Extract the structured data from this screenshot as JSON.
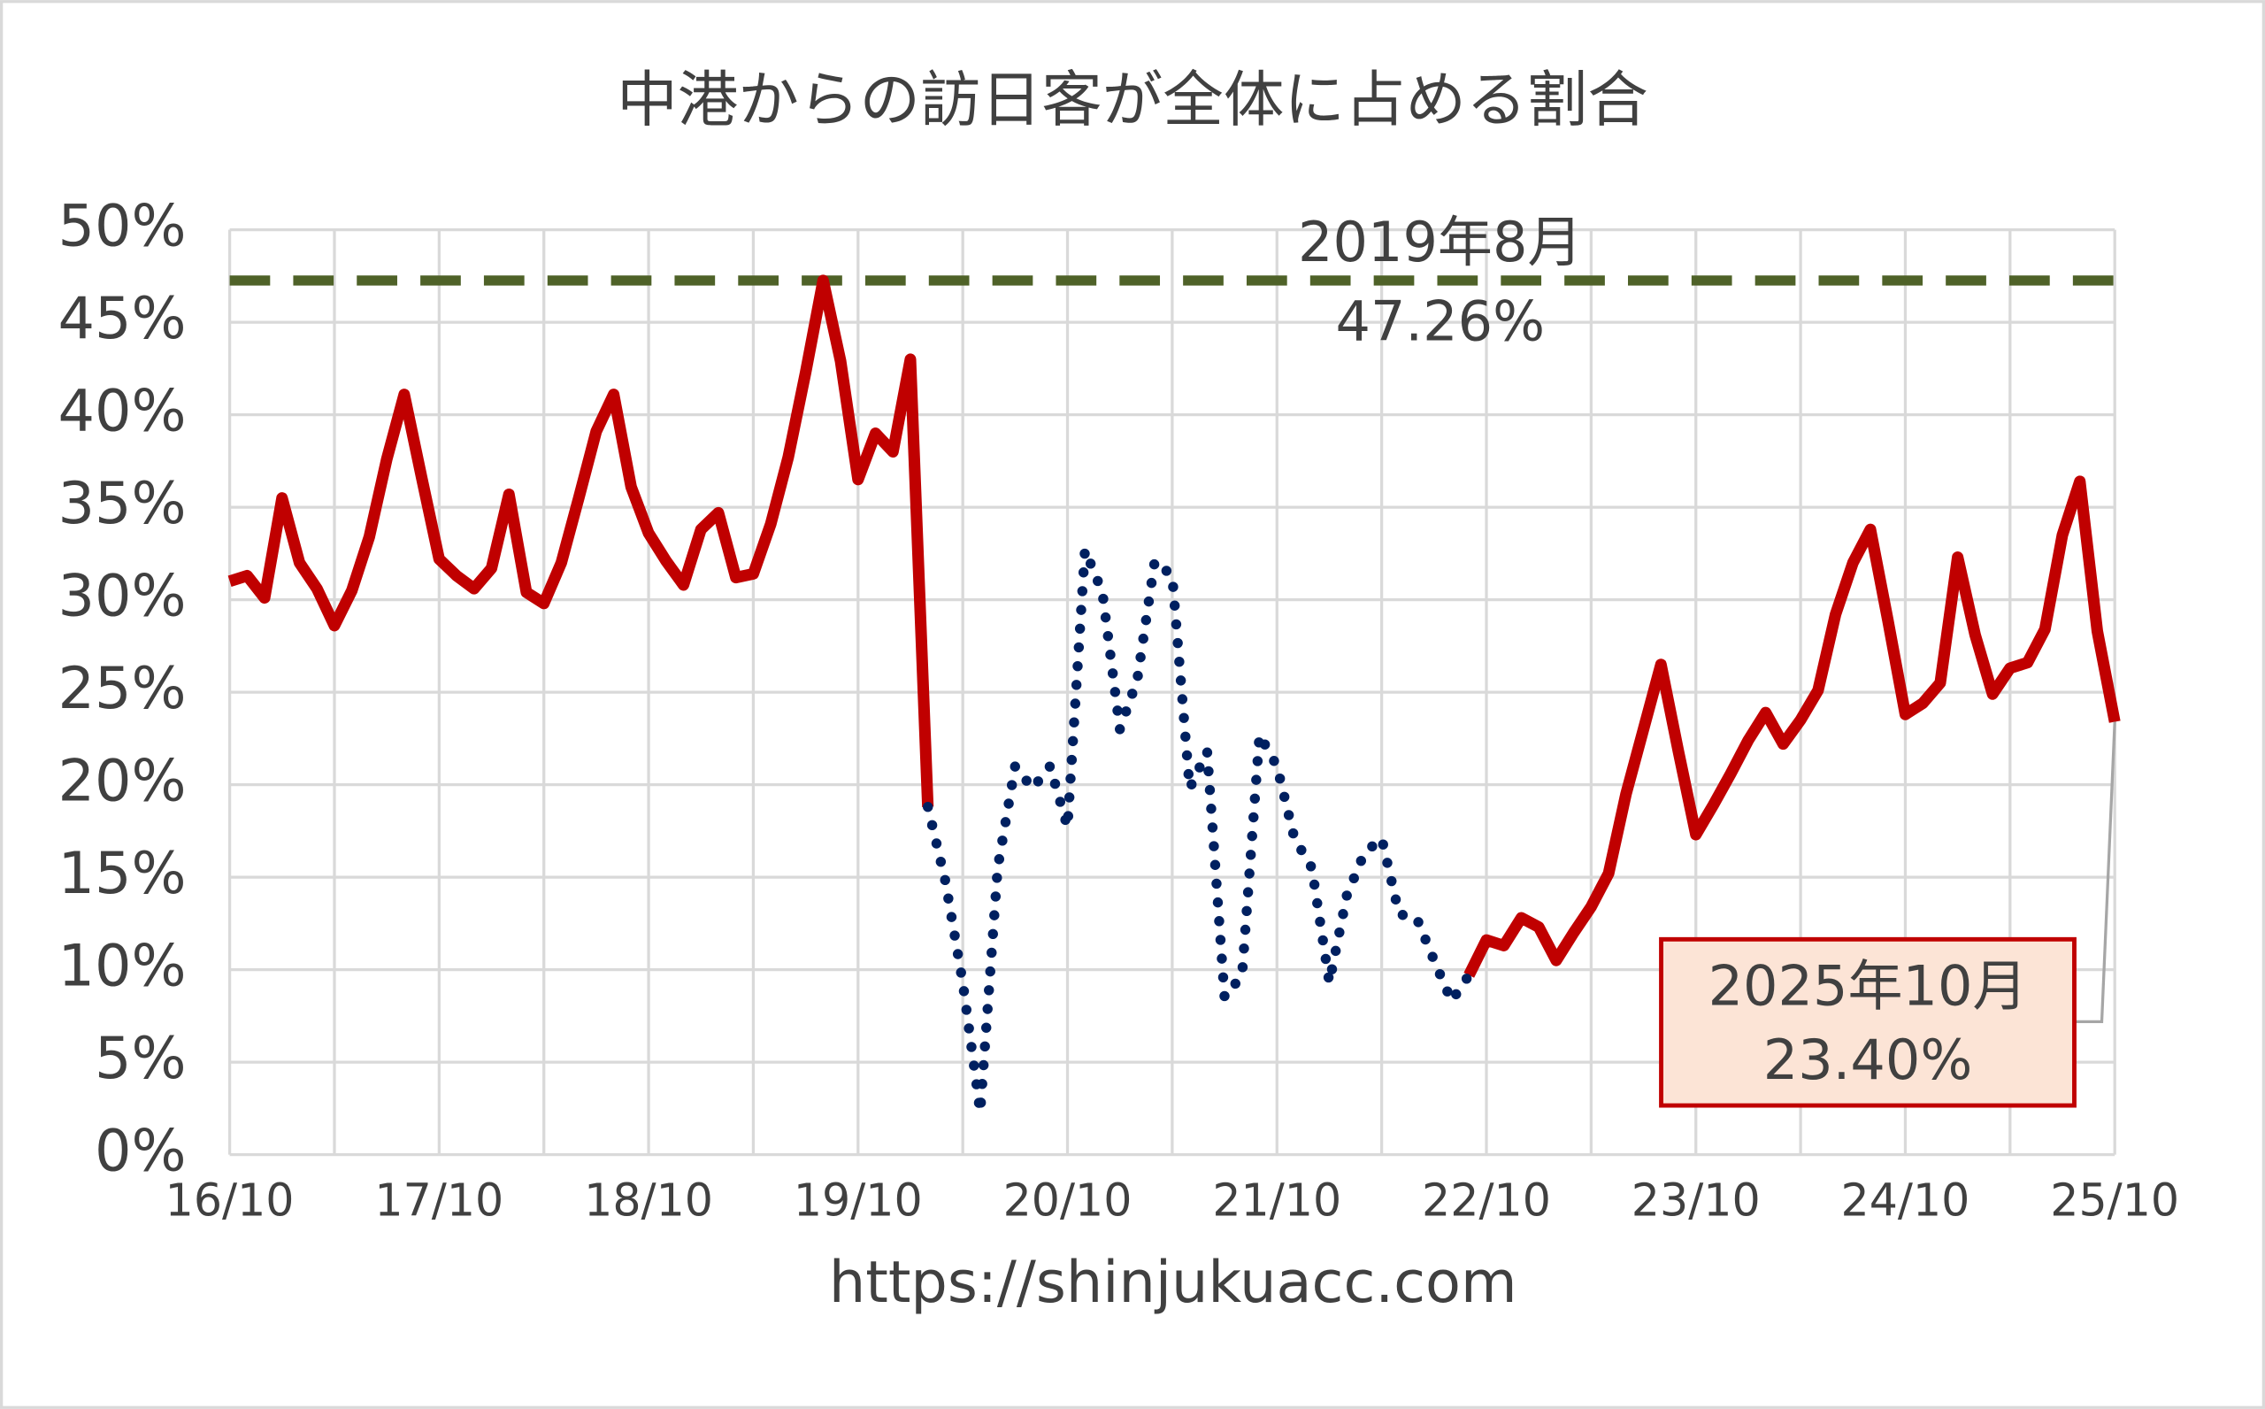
{
  "chart_data": {
    "type": "line",
    "title": "中港からの訪日客が全体に占める割合",
    "x_label": "https://shinjukuacc.com",
    "categories": [
      "16/10",
      null,
      null,
      null,
      null,
      null,
      null,
      null,
      null,
      null,
      null,
      null,
      "17/10",
      null,
      null,
      null,
      null,
      null,
      null,
      null,
      null,
      null,
      null,
      null,
      "18/10",
      null,
      null,
      null,
      null,
      null,
      null,
      null,
      null,
      null,
      null,
      null,
      "19/10",
      null,
      null,
      null,
      null,
      null,
      null,
      null,
      null,
      null,
      null,
      null,
      "20/10",
      null,
      null,
      null,
      null,
      null,
      null,
      null,
      null,
      null,
      null,
      null,
      "21/10",
      null,
      null,
      null,
      null,
      null,
      null,
      null,
      null,
      null,
      null,
      null,
      "22/10",
      null,
      null,
      null,
      null,
      null,
      null,
      null,
      null,
      null,
      null,
      null,
      "23/10",
      null,
      null,
      null,
      null,
      null,
      null,
      null,
      null,
      null,
      null,
      null,
      "24/10",
      null,
      null,
      null,
      null,
      null,
      null,
      null,
      null,
      null,
      null,
      null,
      "25/10"
    ],
    "series": [
      {
        "color": "#c00000",
        "style": "solid",
        "values": [
          31.0,
          31.3,
          30.1,
          35.5,
          32.0,
          30.6,
          28.6,
          30.5,
          33.4,
          37.6,
          41.1,
          36.6,
          32.2,
          31.3,
          30.6,
          31.7,
          35.7,
          30.4,
          29.8,
          32.0,
          35.5,
          39.1,
          41.1,
          36.1,
          33.6,
          32.1,
          30.8,
          33.8,
          34.7,
          31.2,
          31.4,
          34.1,
          37.7,
          42.3,
          47.26,
          42.9,
          36.5,
          39.0,
          38.0,
          43.0,
          18.8,
          null,
          null,
          null,
          null,
          null,
          null,
          null,
          null,
          null,
          null,
          null,
          null,
          null,
          null,
          null,
          null,
          null,
          null,
          null,
          null,
          null,
          null,
          null,
          null,
          null,
          null,
          null,
          null,
          null,
          null,
          9.7,
          11.6,
          11.3,
          12.8,
          12.3,
          10.5,
          12.0,
          13.4,
          15.2,
          19.5,
          23.0,
          26.5,
          21.8,
          17.3,
          18.9,
          20.6,
          22.4,
          23.9,
          22.2,
          23.5,
          25.1,
          29.2,
          32.0,
          33.8,
          28.9,
          23.8,
          24.4,
          25.5,
          32.3,
          28.1,
          24.9,
          26.3,
          26.6,
          28.4,
          33.5,
          36.4,
          28.3,
          23.4
        ]
      },
      {
        "color": "#002060",
        "style": "dotted",
        "values": [
          null,
          null,
          null,
          null,
          null,
          null,
          null,
          null,
          null,
          null,
          null,
          null,
          null,
          null,
          null,
          null,
          null,
          null,
          null,
          null,
          null,
          null,
          null,
          null,
          null,
          null,
          null,
          null,
          null,
          null,
          null,
          null,
          null,
          null,
          null,
          null,
          null,
          null,
          null,
          null,
          18.8,
          14.8,
          9.3,
          2.3,
          15.5,
          21.0,
          19.8,
          21.0,
          17.7,
          32.7,
          30.4,
          23.0,
          25.7,
          32.1,
          31.3,
          19.8,
          21.8,
          8.5,
          9.7,
          22.7,
          21.0,
          17.1,
          15.5,
          9.3,
          14.0,
          16.3,
          17.1,
          13.0,
          12.8,
          10.5,
          8.3,
          9.7,
          null,
          null,
          null,
          null,
          null,
          null,
          null,
          null,
          null,
          null,
          null,
          null,
          null,
          null,
          null,
          null,
          null,
          null,
          null,
          null,
          null,
          null,
          null,
          null,
          null,
          null,
          null,
          null,
          null,
          null,
          null,
          null,
          null,
          null,
          null,
          null,
          null
        ]
      }
    ],
    "ylim": [
      0,
      50
    ],
    "yticks": [
      {
        "value": 0,
        "label": "0%"
      },
      {
        "value": 5,
        "label": "5%"
      },
      {
        "value": 10,
        "label": "10%"
      },
      {
        "value": 15,
        "label": "15%"
      },
      {
        "value": 20,
        "label": "20%"
      },
      {
        "value": 25,
        "label": "25%"
      },
      {
        "value": 30,
        "label": "30%"
      },
      {
        "value": 35,
        "label": "35%"
      },
      {
        "value": 40,
        "label": "40%"
      },
      {
        "value": 45,
        "label": "45%"
      },
      {
        "value": 50,
        "label": "50%"
      }
    ],
    "grid": true,
    "reference_line": {
      "value": 47.26,
      "label": "2019年8月",
      "value_label": "47.26%",
      "color": "#4f6228"
    },
    "callout": {
      "label": "2025年10月",
      "value": 23.4,
      "value_label": "23.40%",
      "fill": "#fce4d6",
      "border": "#c00000"
    }
  }
}
